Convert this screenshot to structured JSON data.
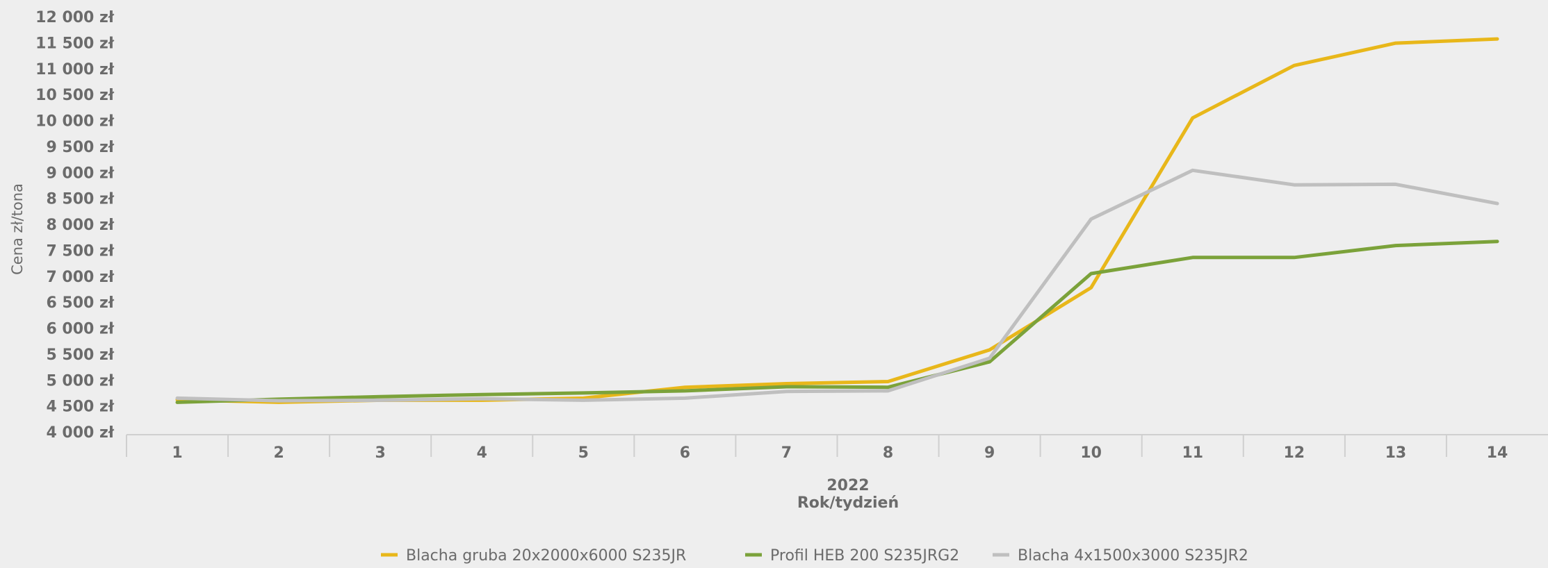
{
  "chart_data": {
    "type": "line",
    "title": "",
    "ylabel": "Cena zł/tona",
    "xlabel_year": "2022",
    "xlabel": "Rok/tydzień",
    "categories": [
      "1",
      "2",
      "3",
      "4",
      "5",
      "6",
      "7",
      "8",
      "9",
      "10",
      "11",
      "12",
      "13",
      "14"
    ],
    "ylim": [
      4000,
      12000
    ],
    "ytick_step": 500,
    "ytick_labels": [
      "4 000 zł",
      "4 500 zł",
      "5 000 zł",
      "5 500 zł",
      "6 000 zł",
      "6 500 zł",
      "7 000 zł",
      "7 500 zł",
      "8 000 zł",
      "8 500 zł",
      "9 000 zł",
      "9 500 zł",
      "10 000 zł",
      "10 500 zł",
      "11 000 zł",
      "11 500 zł",
      "12 000 zł"
    ],
    "grid": false,
    "legend_position": "bottom",
    "series": [
      {
        "name": "Blacha gruba 20x2000x6000 S235JR",
        "color": "#e8b71a",
        "values": [
          4620,
          4570,
          4610,
          4610,
          4650,
          4860,
          4930,
          4970,
          5580,
          6780,
          10050,
          11060,
          11490,
          11570
        ]
      },
      {
        "name": "Profil HEB 200 S235JRG2",
        "color": "#7ba23a",
        "values": [
          4570,
          4630,
          4680,
          4720,
          4750,
          4790,
          4870,
          4860,
          5350,
          7050,
          7360,
          7360,
          7590,
          7670
        ]
      },
      {
        "name": "Blacha 4x1500x3000 S235JR2",
        "color": "#bfbfbf",
        "values": [
          4650,
          4600,
          4610,
          4640,
          4610,
          4650,
          4780,
          4790,
          5420,
          8100,
          9040,
          8760,
          8770,
          8400
        ]
      }
    ]
  }
}
